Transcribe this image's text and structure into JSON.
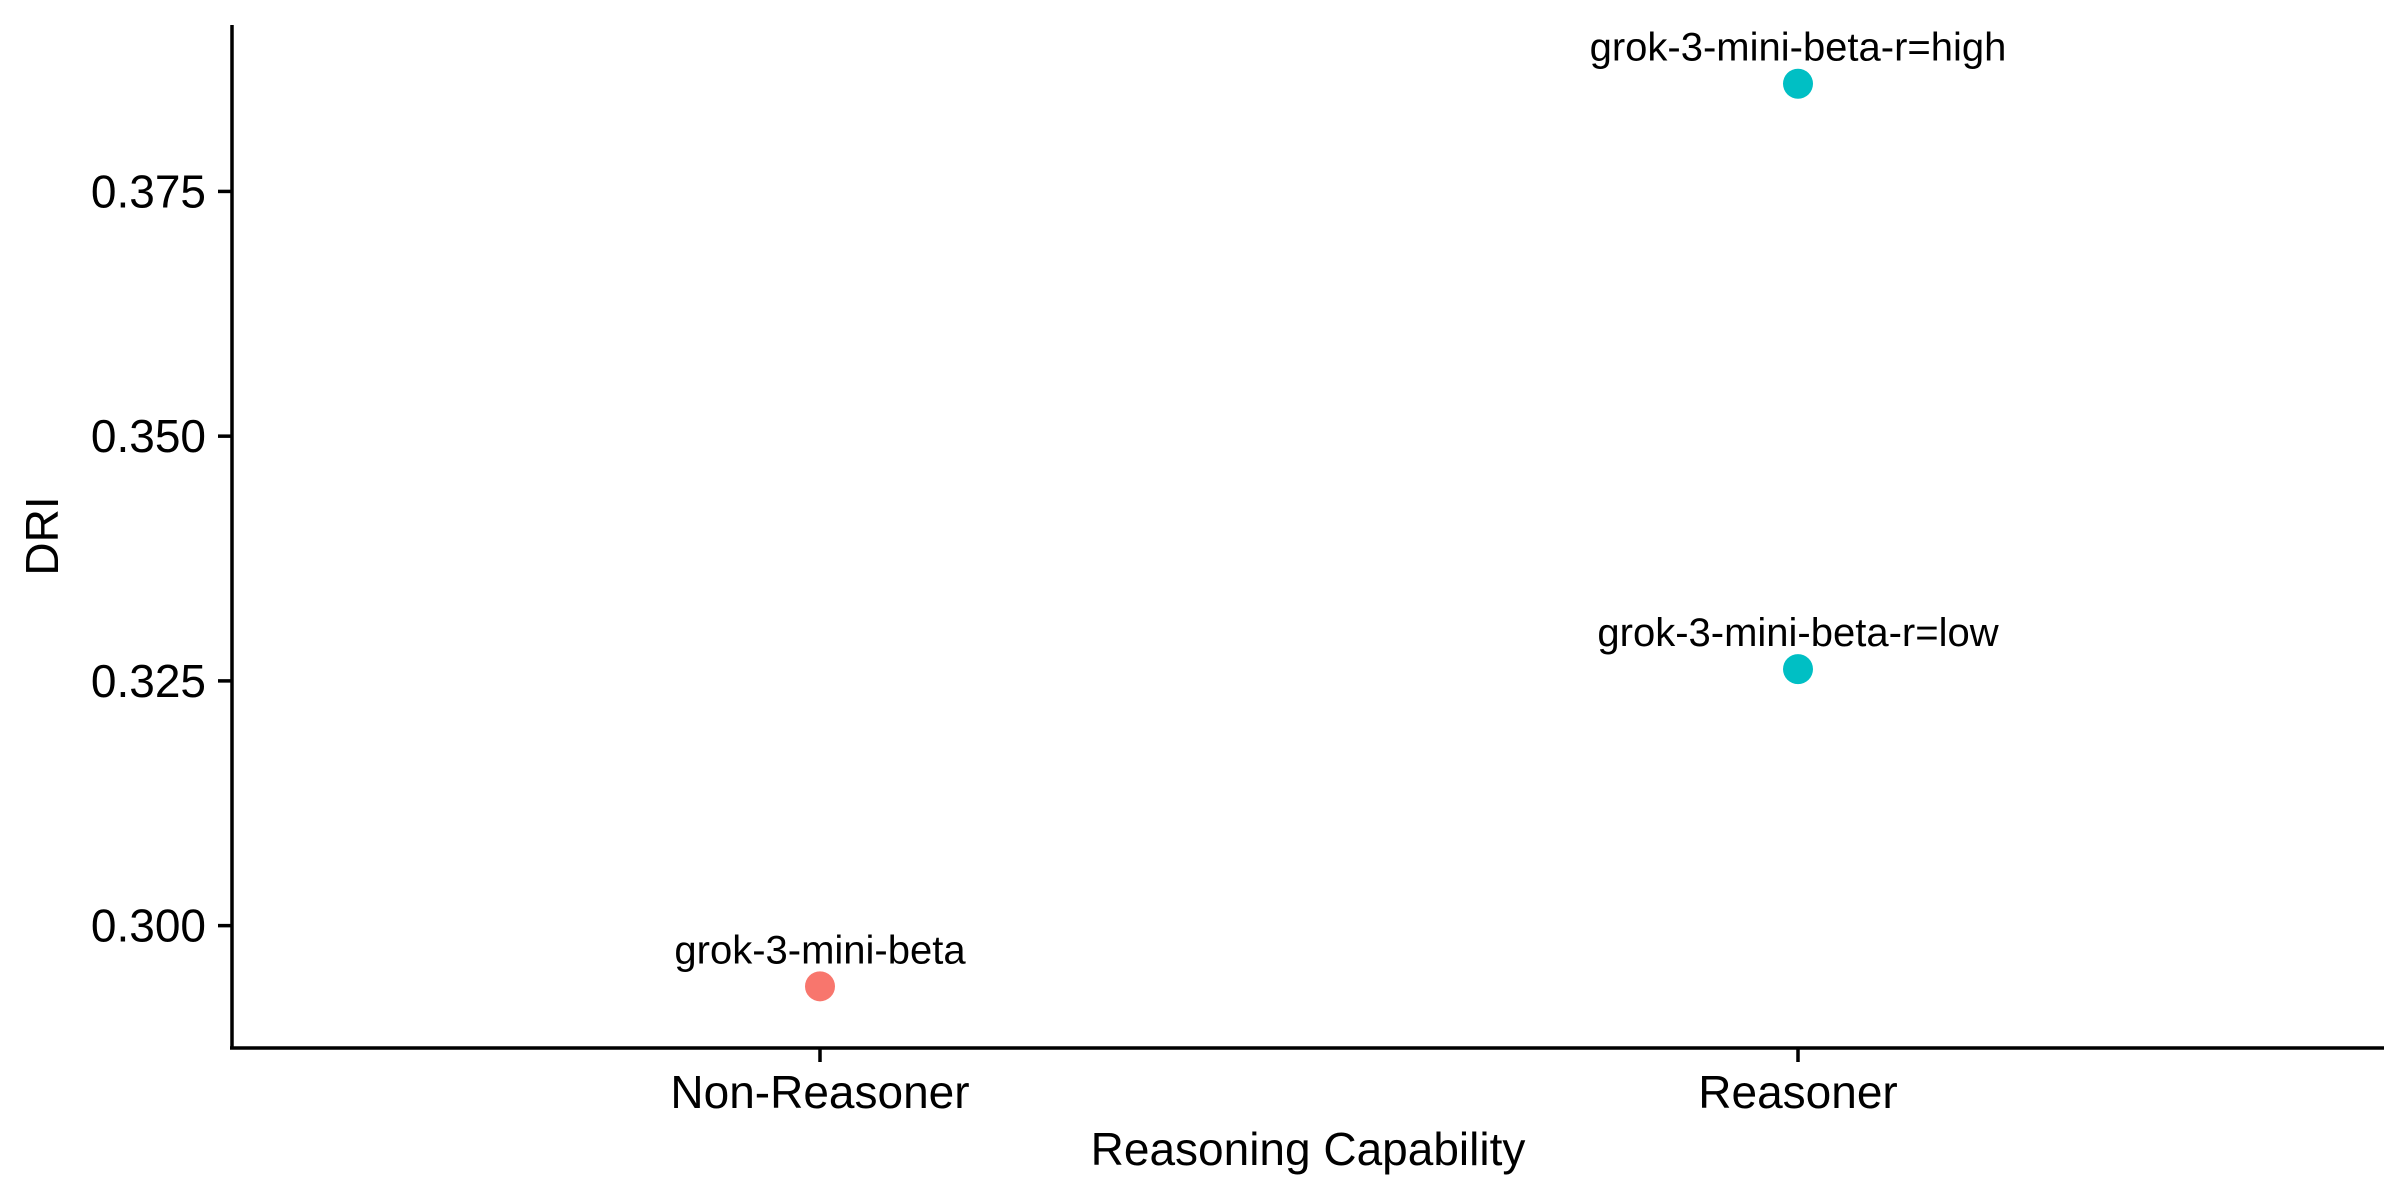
{
  "chart_data": {
    "type": "scatter",
    "title": "",
    "xlabel": "Reasoning Capability",
    "ylabel": "DRI",
    "categories": [
      "Non-Reasoner",
      "Reasoner"
    ],
    "ylim": [
      0.2875,
      0.392
    ],
    "yticks": [
      0.3,
      0.325,
      0.35,
      0.375
    ],
    "ytick_labels": [
      "0.300",
      "0.325",
      "0.350",
      "0.375"
    ],
    "grid": false,
    "legend": "none",
    "points": [
      {
        "category": "Non-Reasoner",
        "y": 0.2938,
        "label": "grok-3-mini-beta",
        "color": "#F8766D"
      },
      {
        "category": "Reasoner",
        "y": 0.3262,
        "label": "grok-3-mini-beta-r=low",
        "color": "#00BFC4"
      },
      {
        "category": "Reasoner",
        "y": 0.386,
        "label": "grok-3-mini-beta-r=high",
        "color": "#00BFC4"
      }
    ]
  }
}
